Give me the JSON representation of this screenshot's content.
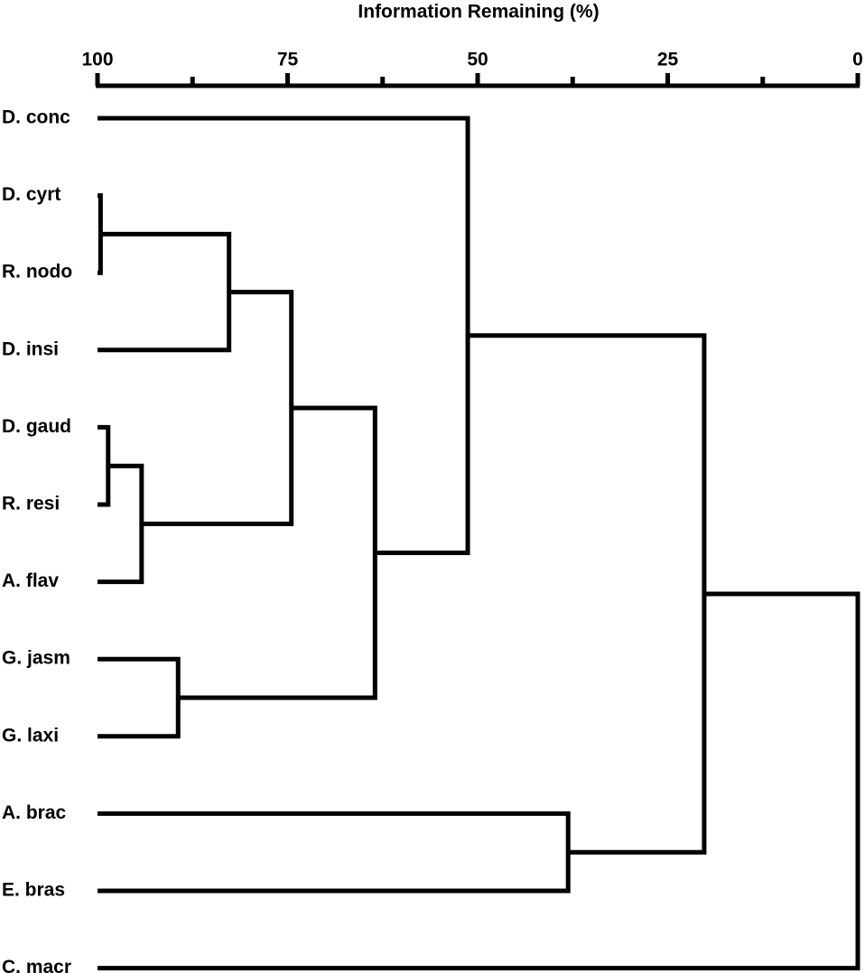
{
  "chart_data": {
    "type": "dendrogram",
    "title": "Information Remaining (%)",
    "xlim": [
      100,
      0
    ],
    "xticks": [
      100,
      75,
      50,
      25,
      0
    ],
    "xminor_ticks": [
      87.5,
      62.5,
      37.5,
      12.5
    ],
    "color": "#000000",
    "leaves": [
      "D. conc",
      "D. cyrt",
      "R. nodo",
      "D. insi",
      "D. gaud",
      "R. resi",
      "A. flav",
      "G. jasm",
      "G. laxi",
      "A. brac",
      "E. bras",
      "C. macr"
    ],
    "merges": [
      {
        "children": [
          1,
          2
        ],
        "height": 99.6
      },
      {
        "children": [
          4,
          5
        ],
        "height": 98.6
      },
      {
        "children": [
          13,
          6
        ],
        "height": 94.2
      },
      {
        "children": [
          7,
          8
        ],
        "height": 89.4
      },
      {
        "children": [
          12,
          3
        ],
        "height": 82.7
      },
      {
        "children": [
          16,
          14
        ],
        "height": 74.5
      },
      {
        "children": [
          17,
          15
        ],
        "height": 63.5
      },
      {
        "children": [
          0,
          18
        ],
        "height": 51.3
      },
      {
        "children": [
          9,
          10
        ],
        "height": 38.1
      },
      {
        "children": [
          19,
          20
        ],
        "height": 20.2
      },
      {
        "children": [
          21,
          11
        ],
        "height": 0
      }
    ]
  }
}
